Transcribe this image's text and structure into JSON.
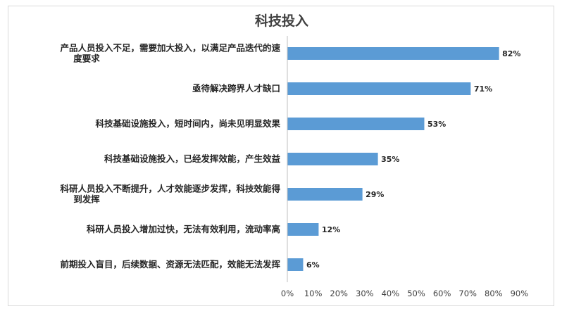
{
  "chart_data": {
    "type": "bar",
    "orientation": "horizontal",
    "title": "科技投入",
    "categories": [
      [
        "产品人员投入不足，需要加大投入，以满足产品迭代的速",
        "度要求"
      ],
      [
        "亟待解决跨界人才缺口"
      ],
      [
        "科技基础设施投入，短时间内，尚未见明显效果"
      ],
      [
        "科技基础设施投入，已经发挥效能，产生效益"
      ],
      [
        "科研人员投入不断提升，人才效能逐步发挥，科技效能得",
        "到发挥"
      ],
      [
        "科研人员投入增加过快，无法有效利用，流动率高"
      ],
      [
        "前期投入盲目，后续数据、资源无法匹配，效能无法发挥"
      ]
    ],
    "values": [
      82,
      71,
      53,
      35,
      29,
      12,
      6
    ],
    "value_labels": [
      "82%",
      "71%",
      "53%",
      "35%",
      "29%",
      "12%",
      "6%"
    ],
    "xlim": [
      0,
      90
    ],
    "xticks": [
      "0%",
      "10%",
      "20%",
      "30%",
      "40%",
      "50%",
      "60%",
      "70%",
      "80%",
      "90%"
    ],
    "grid": false,
    "bar_color": "#5b9bd5",
    "axis_color": "#bfbfbf"
  }
}
